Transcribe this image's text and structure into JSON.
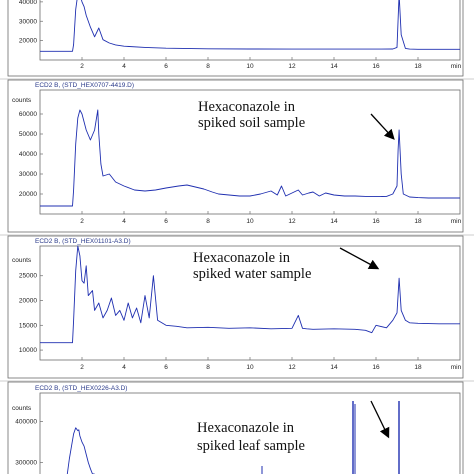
{
  "chart_data": [
    {
      "type": "line",
      "header": "",
      "annotation": [],
      "ylabel": "",
      "yticks": [
        "40000",
        "30000",
        "20000"
      ],
      "xticks": [
        "2",
        "4",
        "6",
        "8",
        "10",
        "12",
        "14",
        "16",
        "18",
        "min"
      ],
      "xlim": [
        0,
        20
      ],
      "ylim": [
        10000,
        42000
      ],
      "x": [
        0,
        1.3,
        1.55,
        1.6,
        1.7,
        1.8,
        1.9,
        2.0,
        2.1,
        2.2,
        2.4,
        2.6,
        2.8,
        3.0,
        3.3,
        3.6,
        4.0,
        5.0,
        6.0,
        8.0,
        10.0,
        12.0,
        14.0,
        16.0,
        16.8,
        17.0,
        17.1,
        17.2,
        17.4,
        17.6,
        18.0,
        19.0,
        20.0
      ],
      "y": [
        14500,
        14500,
        14500,
        18000,
        36000,
        44000,
        44000,
        40000,
        37500,
        33000,
        27000,
        22000,
        26500,
        20500,
        18800,
        17800,
        17100,
        16500,
        16100,
        15800,
        15700,
        15600,
        15600,
        15600,
        15700,
        16500,
        44000,
        23000,
        16000,
        15600,
        15500,
        15500,
        15500
      ]
    },
    {
      "type": "line",
      "header": "ECD2 B, (STD_HEX0707-4419.D)",
      "annotation": [
        "Hexaconazole in",
        "spiked soil sample"
      ],
      "ylabel": "counts",
      "yticks": [
        "60000",
        "50000",
        "40000",
        "30000",
        "20000"
      ],
      "xticks": [
        "2",
        "4",
        "6",
        "8",
        "10",
        "12",
        "14",
        "16",
        "18",
        "min"
      ],
      "xlim": [
        0,
        20
      ],
      "ylim": [
        10000,
        72000
      ],
      "x": [
        0,
        1.5,
        1.55,
        1.6,
        1.7,
        1.8,
        1.9,
        2.0,
        2.1,
        2.2,
        2.4,
        2.6,
        2.75,
        2.8,
        2.9,
        3.0,
        3.3,
        3.6,
        4.0,
        4.5,
        5.0,
        5.5,
        6.0,
        6.3,
        6.6,
        7.0,
        7.4,
        7.8,
        8.2,
        8.5,
        9.0,
        9.5,
        10.0,
        10.5,
        11.0,
        11.3,
        11.5,
        11.7,
        12.0,
        12.3,
        12.5,
        12.8,
        13.0,
        13.3,
        13.6,
        14.0,
        14.5,
        15.0,
        15.5,
        16.0,
        16.5,
        16.8,
        17.0,
        17.05,
        17.1,
        17.2,
        17.3,
        17.6,
        18.0,
        18.5,
        19.0,
        20.0
      ],
      "y": [
        14000,
        14000,
        14000,
        22000,
        45000,
        58000,
        62000,
        60000,
        56000,
        52000,
        47000,
        52000,
        62000,
        50000,
        35000,
        29000,
        30000,
        26000,
        24000,
        22000,
        21500,
        22000,
        23000,
        23500,
        24000,
        24500,
        23500,
        22500,
        21000,
        20000,
        19500,
        19000,
        19000,
        20000,
        21500,
        19500,
        24000,
        19000,
        20500,
        22000,
        19500,
        20500,
        21000,
        19000,
        20500,
        19500,
        19000,
        19000,
        18800,
        18700,
        18800,
        20000,
        24000,
        42000,
        52000,
        30000,
        20000,
        18500,
        18200,
        18000,
        18000,
        18000
      ]
    },
    {
      "type": "line",
      "header": "ECD2 B, (STD_HEX01101-A3.D)",
      "annotation": [
        "Hexaconazole in",
        "spiked water sample"
      ],
      "ylabel": "counts",
      "yticks": [
        "25000",
        "20000",
        "15000",
        "10000"
      ],
      "xticks": [
        "2",
        "4",
        "6",
        "8",
        "10",
        "12",
        "14",
        "16",
        "18",
        "min"
      ],
      "xlim": [
        0,
        20
      ],
      "ylim": [
        8000,
        31000
      ],
      "x": [
        0,
        1.5,
        1.55,
        1.6,
        1.7,
        1.8,
        1.9,
        2.0,
        2.1,
        2.2,
        2.3,
        2.5,
        2.6,
        2.8,
        3.0,
        3.2,
        3.4,
        3.6,
        3.8,
        4.0,
        4.2,
        4.4,
        4.6,
        4.8,
        5.0,
        5.2,
        5.4,
        5.6,
        5.8,
        6.0,
        6.5,
        7.0,
        8.0,
        9.0,
        10.0,
        11.0,
        12.0,
        12.3,
        12.5,
        12.7,
        13.0,
        14.0,
        15.0,
        15.5,
        15.8,
        16.0,
        16.5,
        16.8,
        17.0,
        17.1,
        17.2,
        17.4,
        17.6,
        18.0,
        19.0,
        20.0
      ],
      "y": [
        11500,
        11500,
        11500,
        16000,
        26000,
        31000,
        29000,
        24000,
        23500,
        27000,
        21000,
        22000,
        18000,
        19500,
        16500,
        18000,
        20500,
        17000,
        18000,
        16000,
        19500,
        16500,
        18500,
        15500,
        21000,
        16500,
        25000,
        16000,
        15500,
        15000,
        14800,
        14500,
        14600,
        14400,
        14500,
        14300,
        14400,
        17000,
        14400,
        14300,
        14200,
        14300,
        14200,
        14000,
        13500,
        15000,
        14500,
        16000,
        17500,
        24500,
        18000,
        16000,
        15500,
        15400,
        15300,
        15300
      ]
    },
    {
      "type": "line",
      "header": "ECD2 B, (STD_HEX0226-A3.D)",
      "annotation": [
        "Hexaconazole in",
        "spiked leaf sample"
      ],
      "ylabel": "counts",
      "yticks": [
        "400000",
        "300000"
      ],
      "xticks": [],
      "xlim": [
        0,
        20
      ],
      "ylim": [
        250000,
        470000
      ],
      "x": [
        1.3,
        1.4,
        1.5,
        1.6,
        1.7,
        1.8,
        1.85,
        1.9,
        2.0,
        2.1,
        2.2,
        2.3,
        2.4,
        2.5,
        2.6
      ],
      "y": [
        250000,
        310000,
        340000,
        370000,
        385000,
        378000,
        380000,
        365000,
        350000,
        340000,
        320000,
        300000,
        285000,
        270000,
        250000
      ]
    }
  ]
}
